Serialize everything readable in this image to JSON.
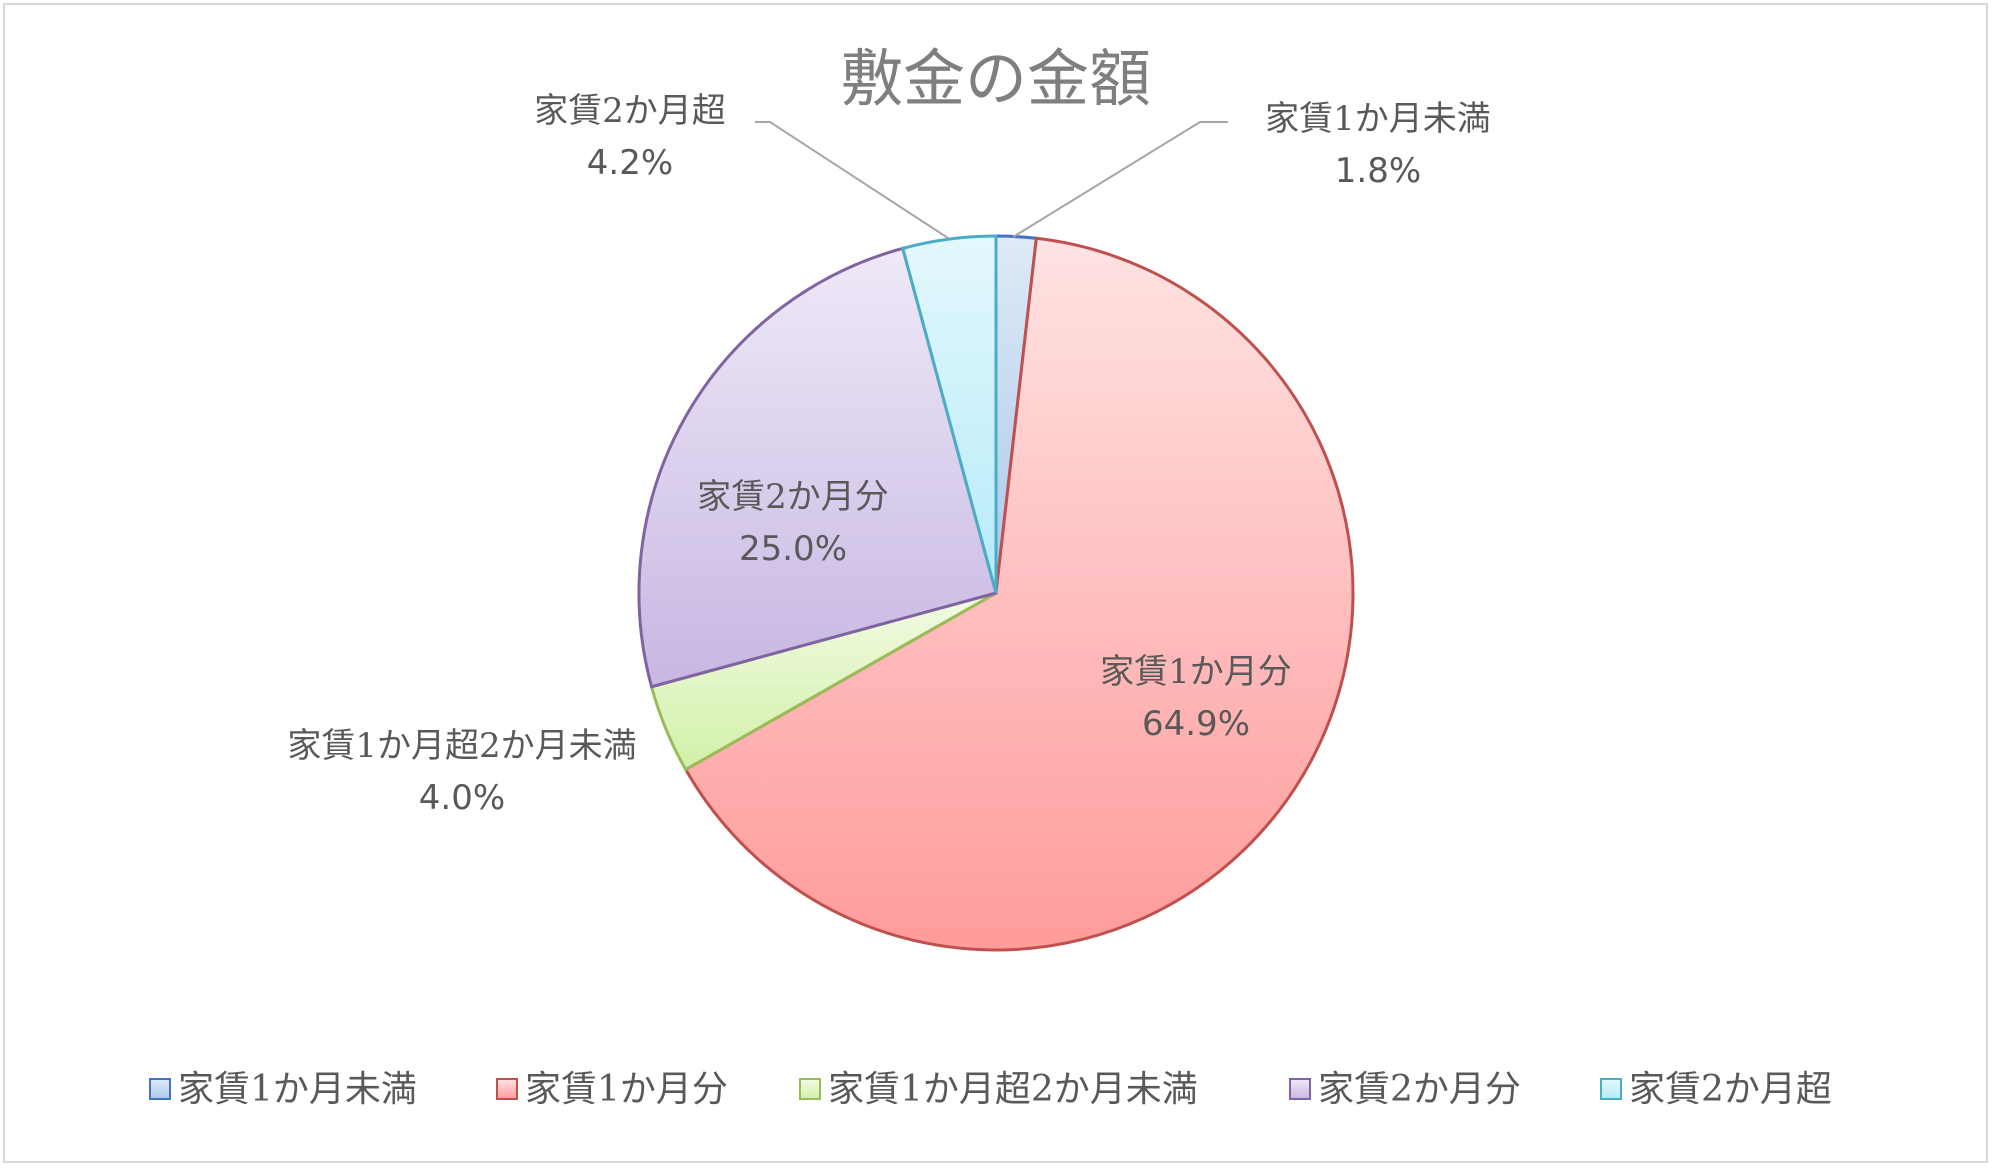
{
  "chart_data": {
    "type": "pie",
    "title": "敷金の金額",
    "categories": [
      "家賃1か月未満",
      "家賃1か月分",
      "家賃1か月超2か月未満",
      "家賃2か月分",
      "家賃2か月超"
    ],
    "values": [
      1.8,
      64.9,
      4.0,
      25.0,
      4.2
    ],
    "value_labels": [
      "1.8%",
      "64.9%",
      "4.0%",
      "25.0%",
      "4.2%"
    ],
    "colors": [
      "#bdd7ee",
      "#f4a0a0",
      "#d9f2b0",
      "#cdbfe6",
      "#bfeefa"
    ],
    "edge_colors": [
      "#4472c4",
      "#c0504d",
      "#9bbb59",
      "#8064a2",
      "#4bacc6"
    ],
    "legend_position": "bottom",
    "start_angle": "12 o'clock, clockwise"
  }
}
